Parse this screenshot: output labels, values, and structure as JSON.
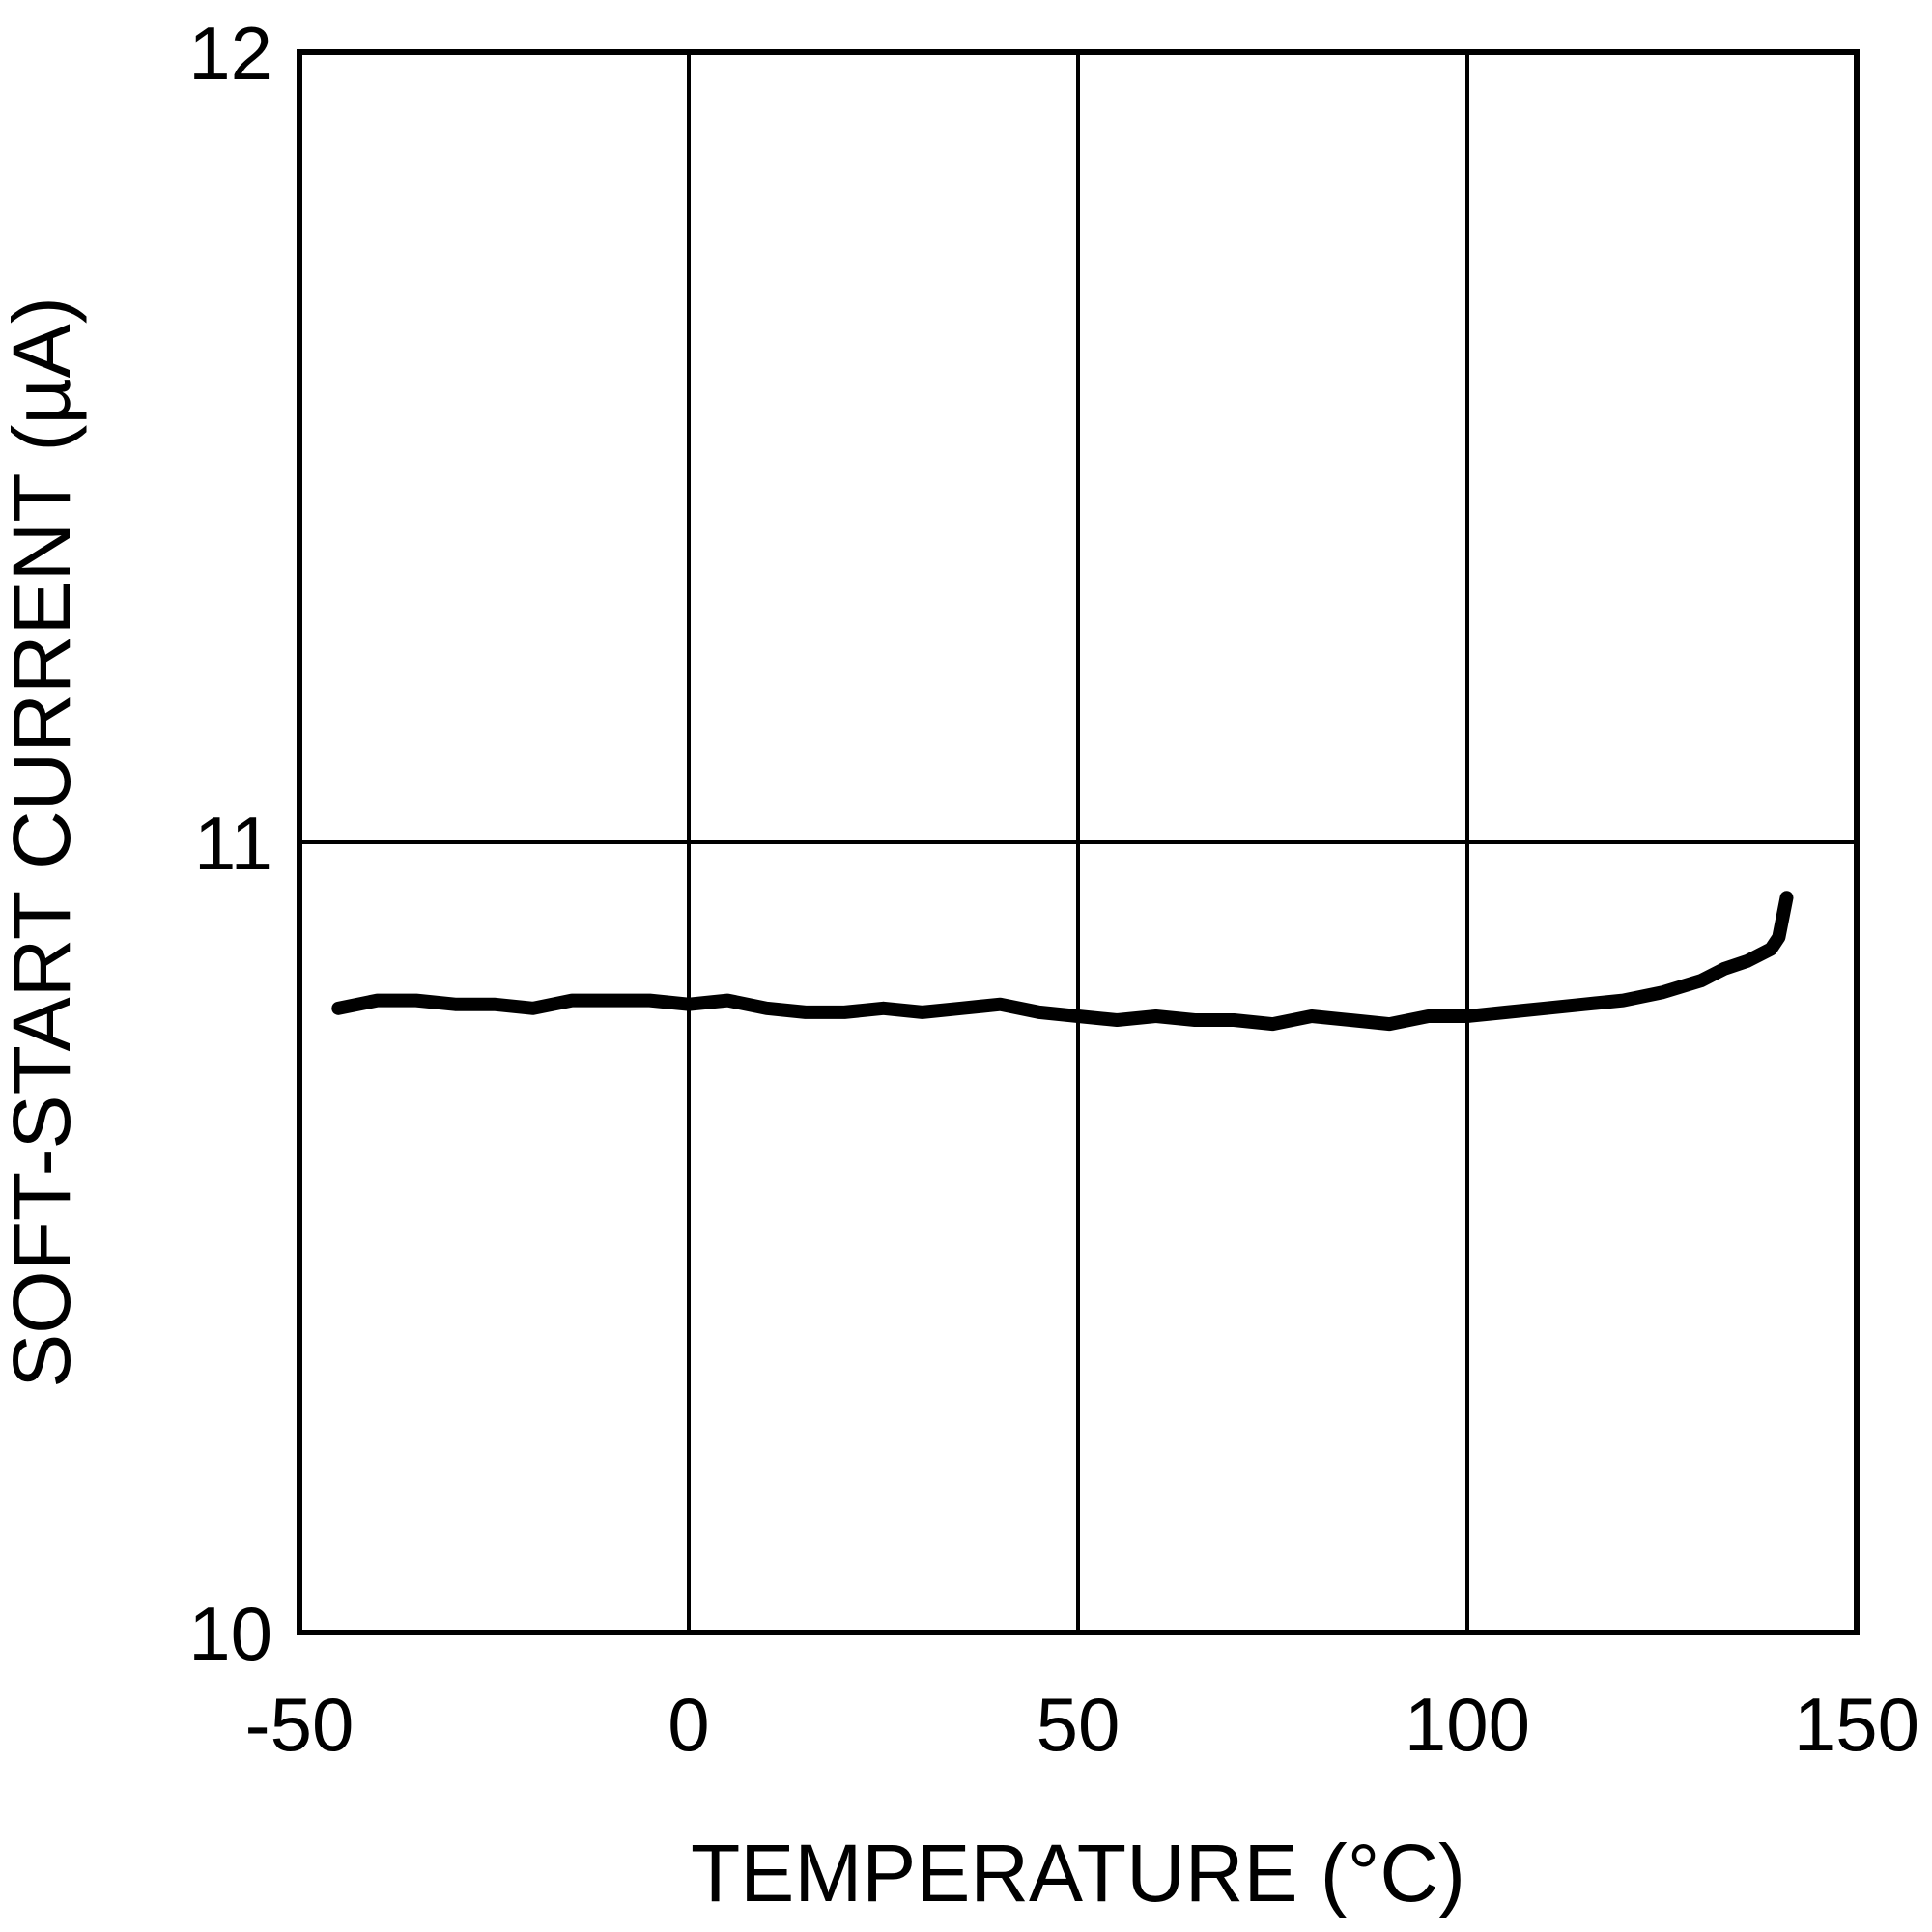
{
  "chart_data": {
    "type": "line",
    "title": "",
    "xlabel": "TEMPERATURE (°C)",
    "ylabel": "SOFT-START CURRENT (µA)",
    "xlim": [
      -50,
      150
    ],
    "ylim": [
      10,
      12
    ],
    "x_ticks": [
      "-50",
      "0",
      "50",
      "100",
      "150"
    ],
    "y_ticks": [
      "10",
      "11",
      "12"
    ],
    "grid": true,
    "legend": null,
    "line_color": "#000000",
    "series": [
      {
        "name": "Soft-start current",
        "x": [
          -45,
          -40,
          -35,
          -30,
          -25,
          -20,
          -15,
          -10,
          -5,
          0,
          5,
          10,
          15,
          20,
          25,
          30,
          35,
          40,
          45,
          50,
          55,
          60,
          65,
          70,
          75,
          80,
          85,
          90,
          95,
          100,
          105,
          110,
          115,
          120,
          125,
          130,
          133,
          136,
          139,
          140,
          141
        ],
        "values": [
          10.79,
          10.8,
          10.8,
          10.795,
          10.795,
          10.79,
          10.8,
          10.8,
          10.8,
          10.795,
          10.8,
          10.79,
          10.785,
          10.785,
          10.79,
          10.785,
          10.79,
          10.795,
          10.785,
          10.78,
          10.775,
          10.78,
          10.775,
          10.775,
          10.77,
          10.78,
          10.775,
          10.77,
          10.78,
          10.78,
          10.785,
          10.79,
          10.795,
          10.8,
          10.81,
          10.825,
          10.84,
          10.85,
          10.865,
          10.88,
          10.93
        ]
      }
    ]
  }
}
